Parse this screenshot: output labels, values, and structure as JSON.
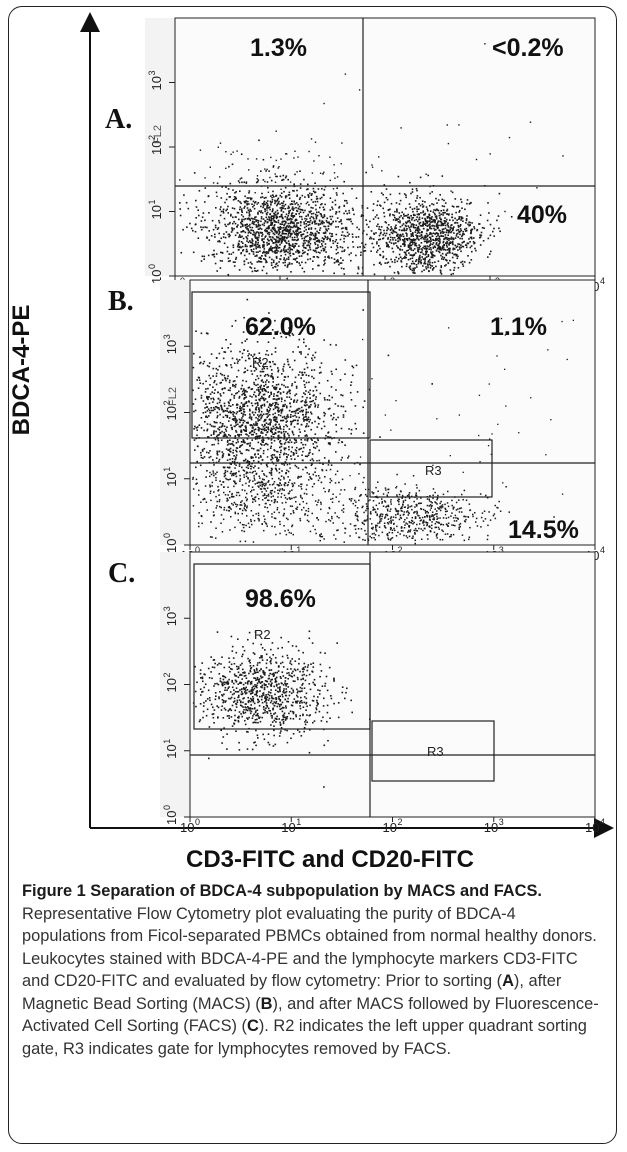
{
  "figure": {
    "y_axis_title": "BDCA-4-PE",
    "x_axis_title": "CD3-FITC and CD20-FITC",
    "panels": [
      {
        "label": "A.",
        "ytick_label": "FL2",
        "quadrants": {
          "upper_left": "1.3%",
          "upper_right": "<0.2%",
          "lower_right": "40%"
        },
        "gates": []
      },
      {
        "label": "B.",
        "ytick_label": "FL2",
        "quadrants": {
          "upper_left": "62.0%",
          "upper_right": "1.1%",
          "lower_right": "14.5%"
        },
        "gates": [
          "R2",
          "R3"
        ]
      },
      {
        "label": "C.",
        "ytick_label": "",
        "quadrants": {
          "upper_left": "98.6%"
        },
        "gates": [
          "R2",
          "R3"
        ]
      }
    ],
    "x_ticks": [
      "10",
      "10",
      "10",
      "10",
      "10"
    ],
    "x_tick_exponents": [
      "0",
      "1",
      "2",
      "3",
      "4"
    ],
    "y_ticks": [
      "10",
      "10",
      "10",
      "10",
      "10"
    ],
    "y_tick_exponents": [
      "0",
      "1",
      "2",
      "3",
      "4"
    ]
  },
  "caption": {
    "title": "Figure 1 Separation of BDCA-4 subpopulation by MACS and FACS.",
    "part1": " Representative Flow Cytometry plot evaluating the purity of BDCA-4 populations from Ficol-separated PBMCs obtained from normal healthy donors. Leukocytes stained with BDCA-4-PE and the lymphocyte markers CD3-FITC and CD20-FITC and evaluated by flow cytometry: Prior to sorting (",
    "ref_a": "A",
    "part2": "), after Magnetic Bead Sorting (MACS) (",
    "ref_b": "B",
    "part3": "), and after MACS followed by Fluorescence-Activated Cell Sorting (FACS) (",
    "ref_c": "C",
    "part4": "). R2 indicates the left upper quadrant sorting gate, R3 indicates gate for lymphocytes removed by FACS."
  }
}
